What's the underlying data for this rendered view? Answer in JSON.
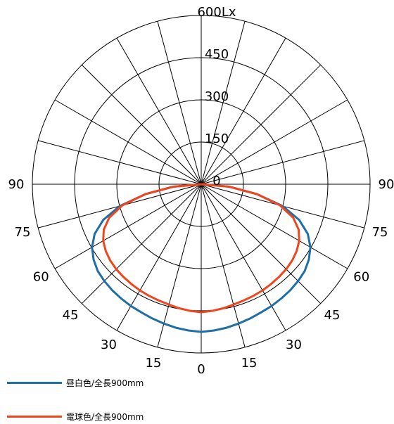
{
  "chart_data": {
    "type": "polar",
    "radial_unit": "Lx",
    "radial_ticks": [
      "0",
      "150",
      "300",
      "450",
      "600Lx"
    ],
    "radial_range": [
      0,
      600
    ],
    "angle_labels_left": [
      "90",
      "75",
      "60",
      "45",
      "30",
      "15"
    ],
    "angle_labels_right": [
      "15",
      "30",
      "45",
      "60",
      "75",
      "90"
    ],
    "angle_label_bottom": "0",
    "grid": true,
    "legend_position": "bottom-left",
    "series": [
      {
        "name": "昼白色/全長900mm",
        "color": "#1f6fa5",
        "angles": [
          0,
          5,
          10,
          15,
          20,
          25,
          30,
          35,
          40,
          45,
          50,
          55,
          60,
          65,
          70,
          75,
          80,
          85,
          90
        ],
        "values": [
          525,
          522,
          518,
          513,
          508,
          503,
          500,
          496,
          492,
          487,
          480,
          467,
          448,
          418,
          370,
          300,
          200,
          100,
          0
        ]
      },
      {
        "name": "電球色/全長900mm",
        "color": "#f0461e",
        "angles": [
          0,
          5,
          10,
          15,
          20,
          25,
          30,
          35,
          40,
          45,
          50,
          55,
          60,
          65,
          70,
          75,
          80,
          85,
          90
        ],
        "values": [
          455,
          452,
          448,
          443,
          440,
          438,
          436,
          433,
          430,
          427,
          422,
          414,
          402,
          382,
          348,
          290,
          200,
          100,
          0
        ]
      }
    ]
  }
}
